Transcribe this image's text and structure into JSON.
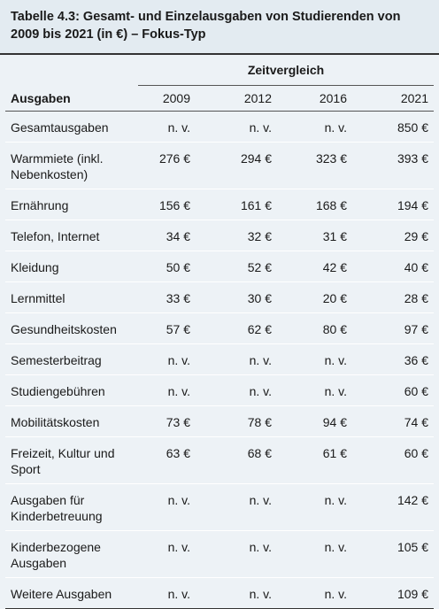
{
  "title": "Tabelle 4.3: Gesamt- und Einzelausgaben von Studierenden von 2009 bis 2021 (in €) – Fokus-Typ",
  "table": {
    "group_header": "Zeitvergleich",
    "header": [
      "Ausgaben",
      "2009",
      "2012",
      "2016",
      "2021"
    ],
    "rows": [
      [
        "Gesamtausgaben",
        "n. v.",
        "n. v.",
        "n. v.",
        "850 €"
      ],
      [
        "Warmmiete (inkl. Nebenkosten)",
        "276 €",
        "294 €",
        "323 €",
        "393 €"
      ],
      [
        "Ernährung",
        "156 €",
        "161 €",
        "168 €",
        "194 €"
      ],
      [
        "Telefon, Internet",
        "34 €",
        "32 €",
        "31 €",
        "29 €"
      ],
      [
        "Kleidung",
        "50 €",
        "52 €",
        "42 €",
        "40 €"
      ],
      [
        "Lernmittel",
        "33 €",
        "30 €",
        "20 €",
        "28 €"
      ],
      [
        "Gesundheitskosten",
        "57 €",
        "62 €",
        "80 €",
        "97 €"
      ],
      [
        "Semesterbeitrag",
        "n. v.",
        "n. v.",
        "n. v.",
        "36 €"
      ],
      [
        "Studiengebühren",
        "n. v.",
        "n. v.",
        "n. v.",
        "60 €"
      ],
      [
        "Mobilitätskosten",
        "73 €",
        "78 €",
        "94 €",
        "74 €"
      ],
      [
        "Freizeit, Kultur und Sport",
        "63 €",
        "68 €",
        "61 €",
        "60 €"
      ],
      [
        "Ausgaben für Kinderbetreuung",
        "n. v.",
        "n. v.",
        "n. v.",
        "142 €"
      ],
      [
        "Kinderbezogene Ausgaben",
        "n. v.",
        "n. v.",
        "n. v.",
        "105 €"
      ],
      [
        "Weitere Ausgaben",
        "n. v.",
        "n. v.",
        "n. v.",
        "109 €"
      ]
    ]
  }
}
